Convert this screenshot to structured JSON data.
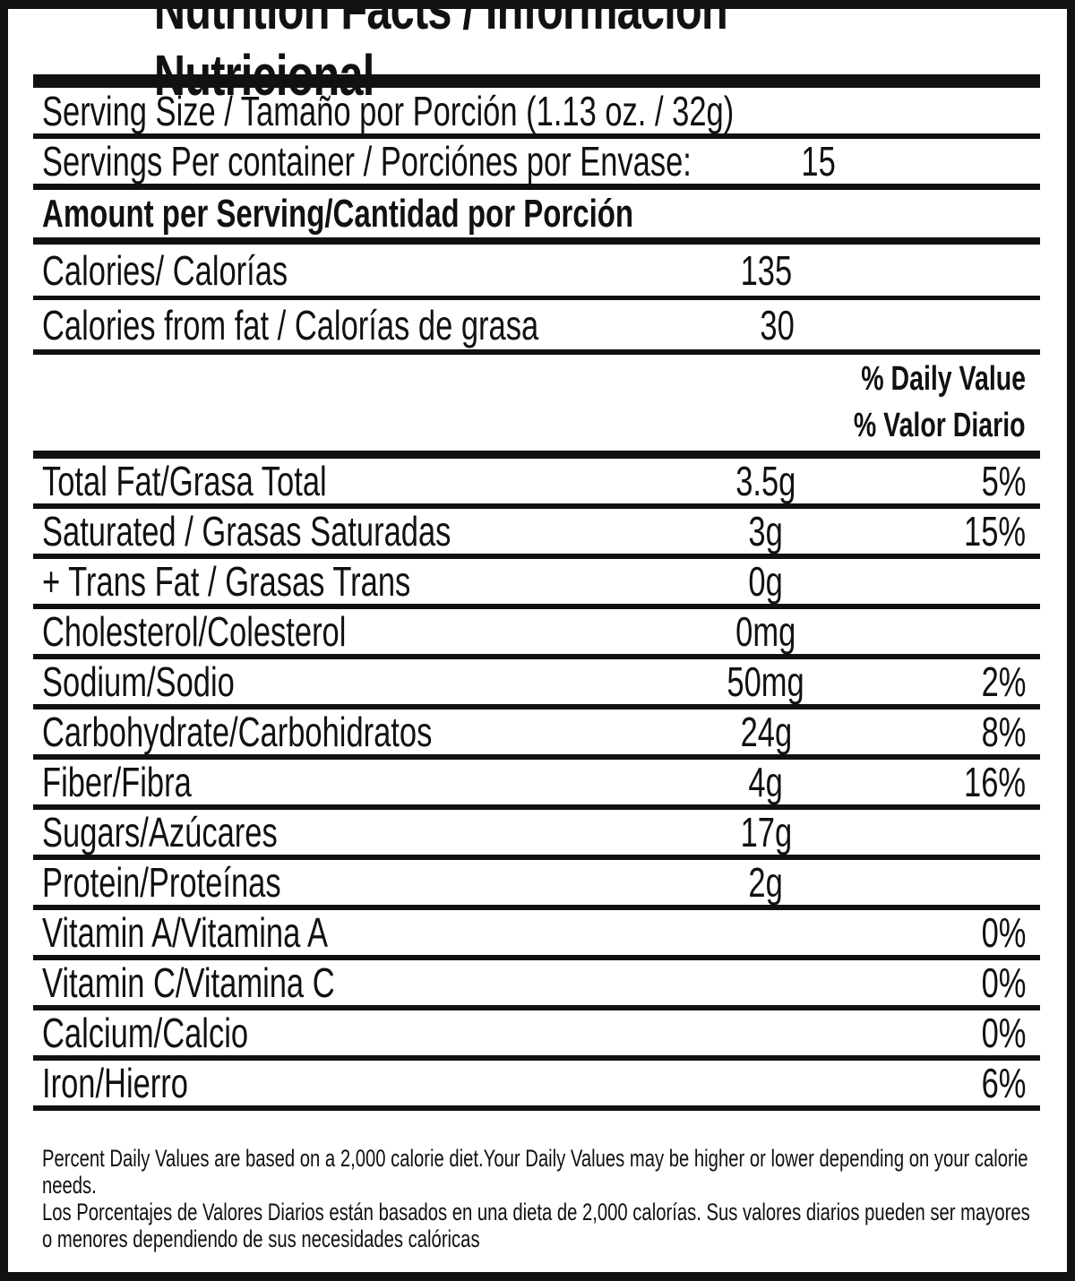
{
  "colors": {
    "ink": "#111111",
    "paper": "#ffffff"
  },
  "header": {
    "title": "Nutrition Facts / Información Nutricional"
  },
  "serving": {
    "serving_size": "Serving Size / Tamaño por Porción (1.13 oz. / 32g)",
    "servings_per_container_label": "Servings Per container / Porciónes por Envase:",
    "servings_per_container_value": "15"
  },
  "amount_section": {
    "header": "Amount per Serving/Cantidad por Porción",
    "calories_label": "Calories/ Calorías",
    "calories_value": "135",
    "calories_from_fat_label": "Calories from fat / Calorías de grasa",
    "calories_from_fat_value": "30"
  },
  "daily_value_header": {
    "en": "% Daily Value",
    "es": "% Valor Diario"
  },
  "nutrients": [
    {
      "label": "Total Fat/Grasa Total",
      "amount": "3.5g",
      "dv": "5%"
    },
    {
      "label": "Saturated / Grasas Saturadas",
      "amount": "3g",
      "dv": "15%"
    },
    {
      "label": "+ Trans Fat / Grasas Trans",
      "amount": "0g",
      "dv": ""
    },
    {
      "label": "Cholesterol/Colesterol",
      "amount": "0mg",
      "dv": ""
    },
    {
      "label": "Sodium/Sodio",
      "amount": "50mg",
      "dv": "2%"
    },
    {
      "label": "Carbohydrate/Carbohidratos",
      "amount": "24g",
      "dv": "8%"
    },
    {
      "label": "Fiber/Fibra",
      "amount": "4g",
      "dv": "16%"
    },
    {
      "label": "Sugars/Azúcares",
      "amount": "17g",
      "dv": ""
    },
    {
      "label": "Protein/Proteínas",
      "amount": "2g",
      "dv": ""
    },
    {
      "label": "Vitamin A/Vitamina A",
      "amount": "",
      "dv": "0%"
    },
    {
      "label": "Vitamin C/Vitamina C",
      "amount": "",
      "dv": "0%"
    },
    {
      "label": "Calcium/Calcio",
      "amount": "",
      "dv": "0%"
    },
    {
      "label": "Iron/Hierro",
      "amount": "",
      "dv": "6%"
    }
  ],
  "footnotes": {
    "en": "Percent Daily Values are based on a 2,000 calorie diet.Your Daily Values may be higher or lower depending on your calorie needs.",
    "es": "Los Porcentajes de Valores Diarios están basados en una dieta de 2,000 calorías. Sus valores diarios pueden ser mayores o menores dependiendo de sus necesidades calóricas"
  }
}
